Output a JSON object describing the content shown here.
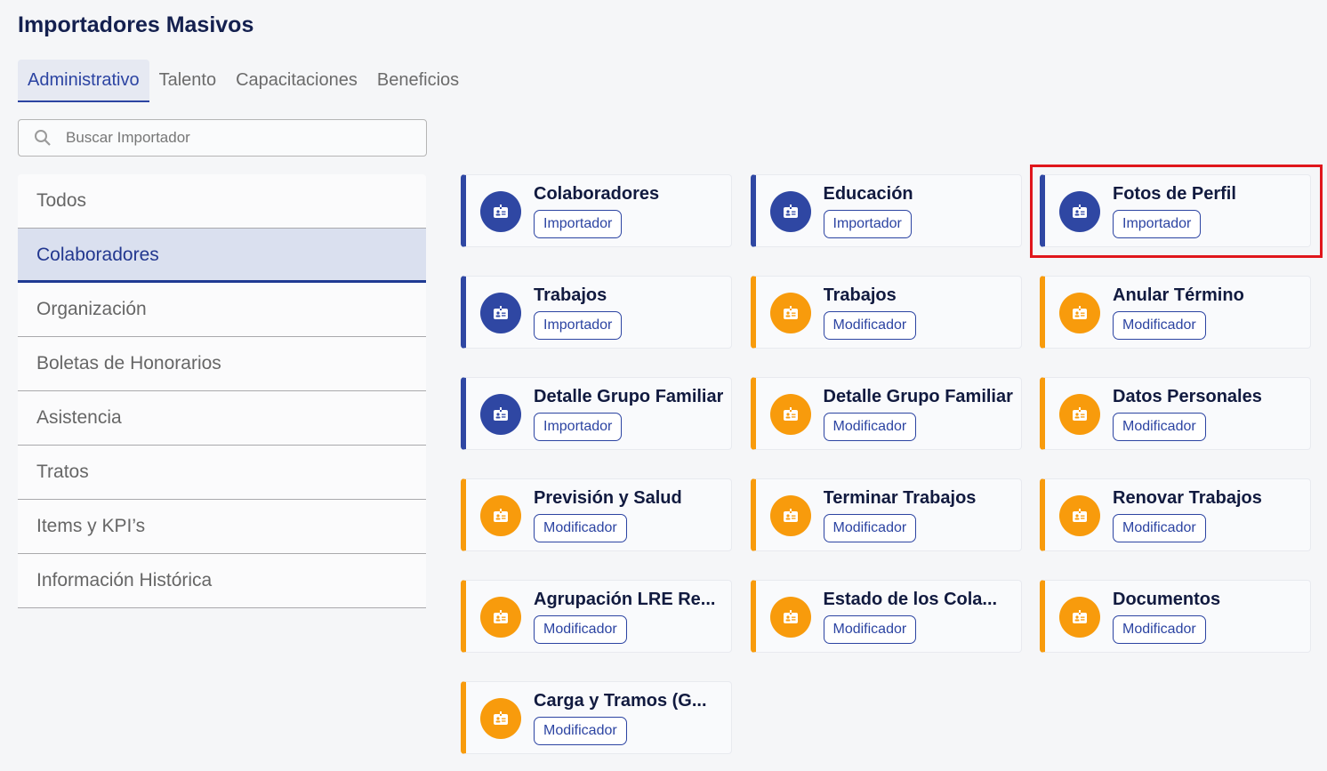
{
  "page": {
    "title": "Importadores Masivos"
  },
  "tabs": [
    {
      "label": "Administrativo",
      "active": true
    },
    {
      "label": "Talento"
    },
    {
      "label": "Capacitaciones"
    },
    {
      "label": "Beneficios"
    }
  ],
  "search": {
    "placeholder": "Buscar Importador",
    "value": ""
  },
  "sidebar": {
    "items": [
      {
        "label": "Todos"
      },
      {
        "label": "Colaboradores",
        "active": true
      },
      {
        "label": "Organización"
      },
      {
        "label": "Boletas de Honorarios"
      },
      {
        "label": "Asistencia"
      },
      {
        "label": "Tratos"
      },
      {
        "label": "Items y KPI’s"
      },
      {
        "label": "Información Histórica"
      }
    ]
  },
  "colors": {
    "importador": "#2f47a3",
    "modificador": "#f89b0c",
    "highlight": "#e0161c"
  },
  "cards": [
    {
      "title": "Colaboradores",
      "badge": "Importador",
      "type": "importador"
    },
    {
      "title": "Educación",
      "badge": "Importador",
      "type": "importador"
    },
    {
      "title": "Fotos de Perfil",
      "badge": "Importador",
      "type": "importador",
      "highlighted": true
    },
    {
      "title": "Trabajos",
      "badge": "Importador",
      "type": "importador"
    },
    {
      "title": "Trabajos",
      "badge": "Modificador",
      "type": "modificador"
    },
    {
      "title": "Anular Término",
      "badge": "Modificador",
      "type": "modificador"
    },
    {
      "title": "Detalle Grupo Familiar",
      "badge": "Importador",
      "type": "importador"
    },
    {
      "title": "Detalle Grupo Familiar",
      "badge": "Modificador",
      "type": "modificador"
    },
    {
      "title": "Datos Personales",
      "badge": "Modificador",
      "type": "modificador"
    },
    {
      "title": "Previsión y Salud",
      "badge": "Modificador",
      "type": "modificador"
    },
    {
      "title": "Terminar Trabajos",
      "badge": "Modificador",
      "type": "modificador"
    },
    {
      "title": "Renovar Trabajos",
      "badge": "Modificador",
      "type": "modificador"
    },
    {
      "title": "Agrupación LRE Re...",
      "badge": "Modificador",
      "type": "modificador"
    },
    {
      "title": "Estado de los Cola...",
      "badge": "Modificador",
      "type": "modificador"
    },
    {
      "title": "Documentos",
      "badge": "Modificador",
      "type": "modificador"
    },
    {
      "title": "Carga y Tramos (G...",
      "badge": "Modificador",
      "type": "modificador"
    }
  ]
}
